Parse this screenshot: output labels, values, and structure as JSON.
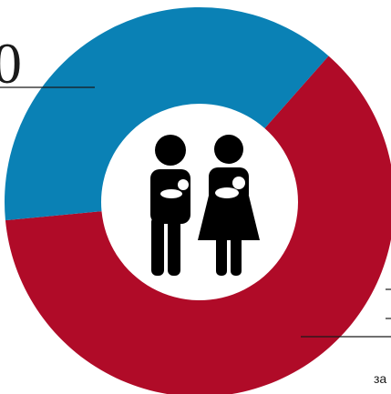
{
  "chart_data": {
    "type": "pie",
    "variant": "donut",
    "slices": [
      {
        "value": 62,
        "color": "#b00b28"
      },
      {
        "value": 38,
        "color": "#0a81b5"
      }
    ],
    "annotations": {
      "left_value_fragment": "0",
      "right_caption_fragment": "за"
    },
    "center_icon": "parents-with-babies-icon"
  }
}
